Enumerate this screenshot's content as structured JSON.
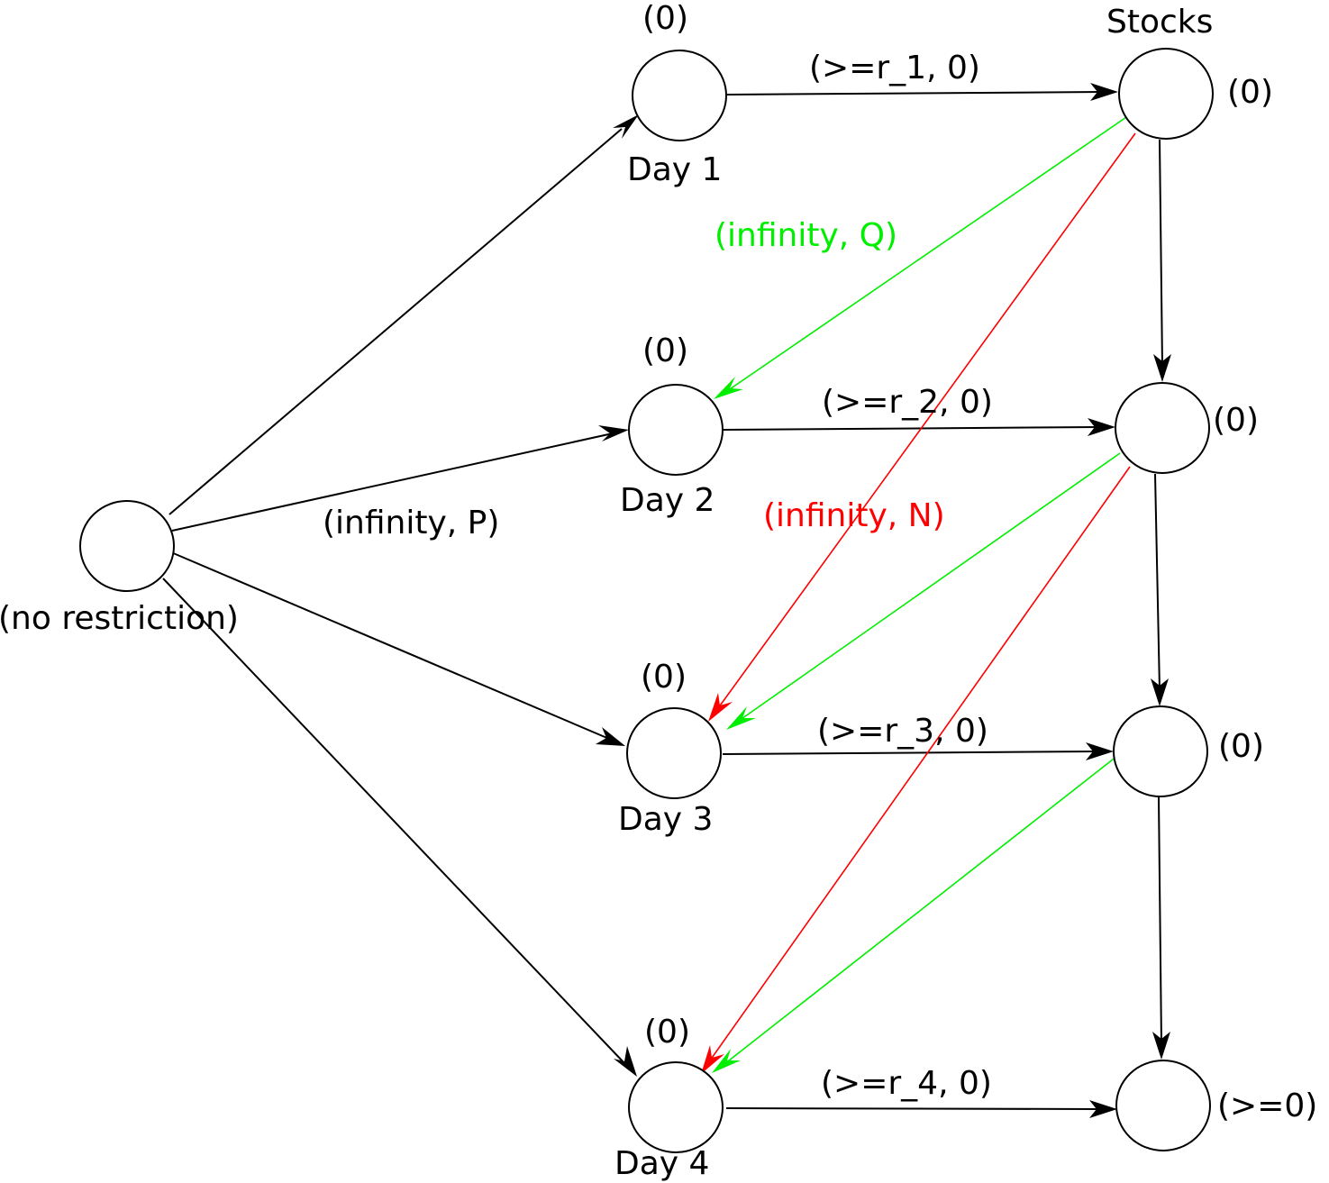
{
  "diagram": {
    "source_label": "(no restriction)",
    "days": [
      {
        "name": "Day 1",
        "annotation": "(0)"
      },
      {
        "name": "Day 2",
        "annotation": "(0)"
      },
      {
        "name": "Day 3",
        "annotation": "(0)"
      },
      {
        "name": "Day 4",
        "annotation": "(0)"
      }
    ],
    "stocks_title": "Stocks",
    "stocks": [
      {
        "annotation": "(0)"
      },
      {
        "annotation": "(0)"
      },
      {
        "annotation": "(0)"
      },
      {
        "annotation": "(>=0)"
      }
    ],
    "edge_labels": {
      "source_to_days": "(infinity, P)",
      "stocks_to_next_day": "(infinity, Q)",
      "stocks_to_day_after": "(infinity, N)",
      "day_to_stock": [
        "(>=r_1, 0)",
        "(>=r_2, 0)",
        "(>=r_3, 0)",
        "(>=r_4, 0)"
      ]
    },
    "colors": {
      "default_edge": "#000000",
      "next_day_edge": "#00ee00",
      "day_after_edge": "#ff0000"
    }
  }
}
